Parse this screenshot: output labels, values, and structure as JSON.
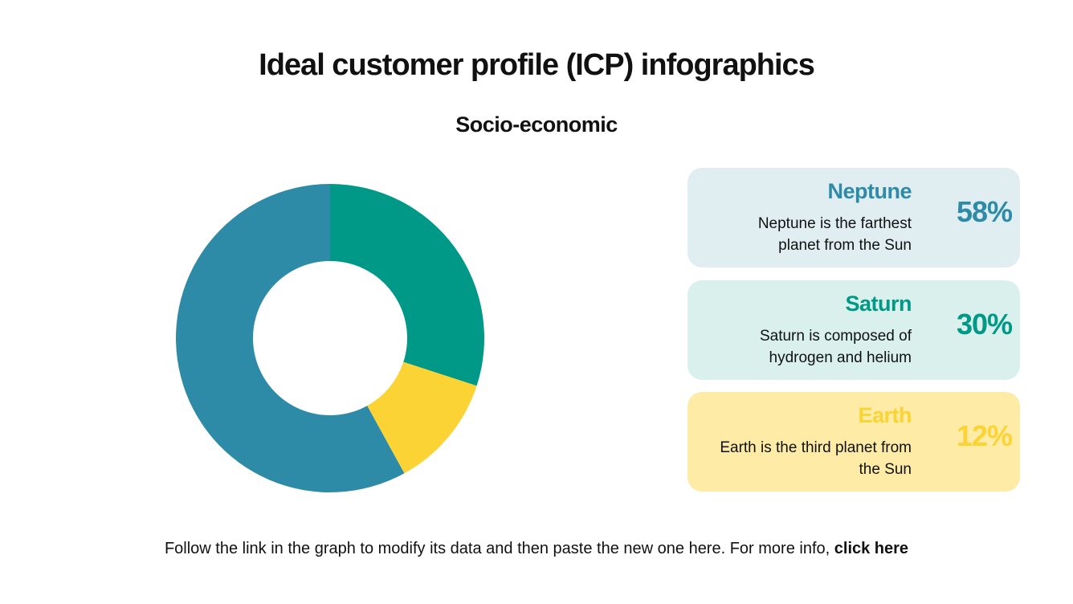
{
  "chart_data": {
    "type": "pie",
    "donut": true,
    "title": "Ideal customer profile (ICP) infographics",
    "subtitle": "Socio-economic",
    "categories": [
      "Neptune",
      "Saturn",
      "Earth"
    ],
    "descriptions": [
      "Neptune is the farthest planet from the Sun",
      "Saturn is composed of hydrogen and helium",
      "Earth is the third planet from the Sun"
    ],
    "values": [
      58,
      30,
      12
    ],
    "value_labels": [
      "58%",
      "30%",
      "12%"
    ],
    "colors": [
      "#2e8ba8",
      "#009886",
      "#fbd334"
    ]
  },
  "footer": {
    "text": "Follow the link in the graph to modify its data and then paste the new one here. For more info,",
    "link": "click here"
  }
}
